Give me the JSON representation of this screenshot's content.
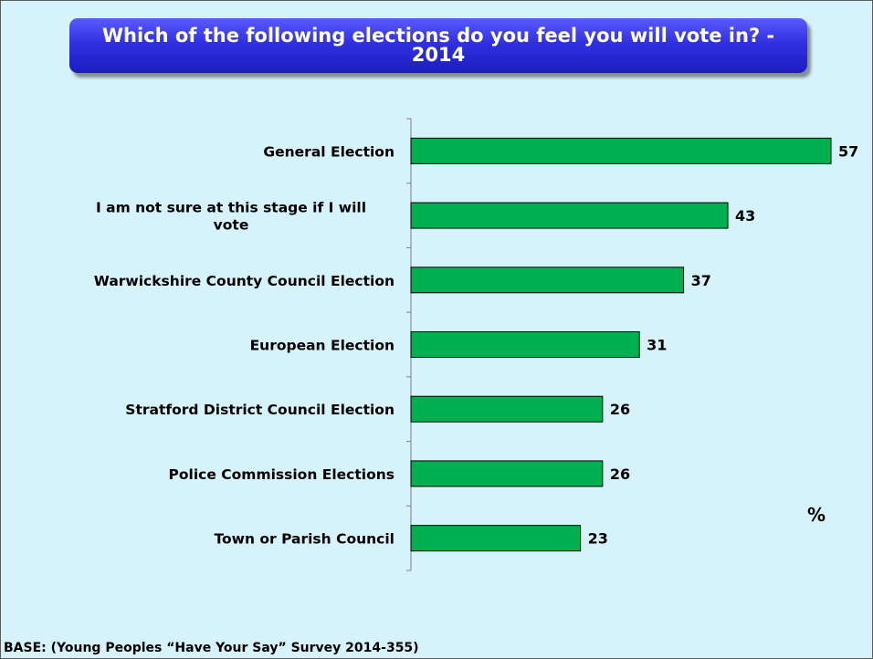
{
  "chart_data": {
    "type": "bar",
    "orientation": "horizontal",
    "title": "Which of the following elections do you feel you will vote in? - 2014",
    "categories": [
      "General Election",
      "I am not sure at this stage if I will vote",
      "Warwickshire County Council Election",
      "European Election",
      "Stratford District Council Election",
      "Police Commission Elections",
      "Town or Parish Council"
    ],
    "category_lines": [
      [
        "General Election"
      ],
      [
        "I am not sure at this stage if I will",
        "vote"
      ],
      [
        "Warwickshire County Council Election"
      ],
      [
        "European Election"
      ],
      [
        "Stratford District Council Election"
      ],
      [
        "Police Commission Elections"
      ],
      [
        "Town or Parish Council"
      ]
    ],
    "values": [
      57,
      43,
      37,
      31,
      26,
      26,
      23
    ],
    "unit": "%",
    "xlim": [
      0,
      57
    ],
    "bar_color": "#00b050",
    "grid": false
  },
  "footer": {
    "base": "BASE: (Young Peoples “Have Your Say” Survey 2014-355)"
  }
}
